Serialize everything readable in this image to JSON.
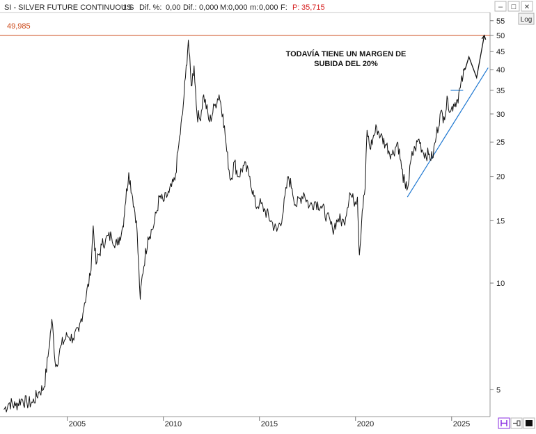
{
  "header": {
    "symbol": "SI - SILVER FUTURE CONTINUOUS",
    "period": "1 S",
    "dif_pct_label": "Dif. %:",
    "dif_pct_value": "0,00",
    "dif_label": "Dif.:",
    "dif_value": "0,000",
    "max_label": "M:",
    "max_value": "0,000",
    "min_label": "m:",
    "min_value": "0,000",
    "f_label": "F:",
    "price_label": "P:",
    "price_value": "35,715"
  },
  "controls": {
    "scale_button": "Log",
    "minimize": "–",
    "restore": "□",
    "close": "✕"
  },
  "colors": {
    "price_line": "#111111",
    "resistance_line": "#cc4a1a",
    "resistance_text": "#cc4a1a",
    "trend_line": "#1f78d1",
    "header_price": "#d62020",
    "gridline": "#e3e3e3"
  },
  "chart_data": {
    "type": "line",
    "scale": "log",
    "title": "SI - SILVER FUTURE CONTINUOUS",
    "xlabel": "",
    "ylabel": "",
    "xlim": [
      2001.5,
      2027.0
    ],
    "ylim": [
      4.2,
      58
    ],
    "x_ticks": [
      2005,
      2010,
      2015,
      2020,
      2025
    ],
    "x_tick_labels": [
      "2005",
      "2010",
      "2015",
      "2020",
      "2025"
    ],
    "y_ticks": [
      5,
      10,
      15,
      20,
      25,
      30,
      35,
      40,
      45,
      50,
      55
    ],
    "y_tick_labels": [
      "5",
      "10",
      "15",
      "20",
      "25",
      "30",
      "35",
      "40",
      "45",
      "50",
      "55"
    ],
    "grid": false,
    "series": [
      {
        "points": [
          [
            2001.7,
            4.4
          ],
          [
            2002.0,
            4.6
          ],
          [
            2002.3,
            4.5
          ],
          [
            2002.6,
            4.7
          ],
          [
            2002.9,
            4.6
          ],
          [
            2003.2,
            4.6
          ],
          [
            2003.5,
            4.9
          ],
          [
            2003.8,
            5.1
          ],
          [
            2004.0,
            6.2
          ],
          [
            2004.2,
            7.9
          ],
          [
            2004.4,
            5.8
          ],
          [
            2004.7,
            6.7
          ],
          [
            2005.0,
            7.1
          ],
          [
            2005.3,
            7.0
          ],
          [
            2005.6,
            7.3
          ],
          [
            2005.9,
            8.8
          ],
          [
            2006.2,
            10.5
          ],
          [
            2006.35,
            14.5
          ],
          [
            2006.5,
            11.3
          ],
          [
            2006.8,
            12.8
          ],
          [
            2007.0,
            13.3
          ],
          [
            2007.3,
            13.6
          ],
          [
            2007.6,
            12.8
          ],
          [
            2007.9,
            14.5
          ],
          [
            2008.0,
            16.5
          ],
          [
            2008.2,
            20.5
          ],
          [
            2008.4,
            17.5
          ],
          [
            2008.6,
            15.0
          ],
          [
            2008.8,
            9.0
          ],
          [
            2008.9,
            10.5
          ],
          [
            2009.2,
            13.5
          ],
          [
            2009.5,
            14.5
          ],
          [
            2009.8,
            17.5
          ],
          [
            2010.0,
            17.0
          ],
          [
            2010.3,
            18.0
          ],
          [
            2010.6,
            19.5
          ],
          [
            2010.8,
            24.5
          ],
          [
            2011.0,
            30.0
          ],
          [
            2011.15,
            38.0
          ],
          [
            2011.3,
            48.5
          ],
          [
            2011.45,
            36.0
          ],
          [
            2011.6,
            41.0
          ],
          [
            2011.75,
            30.0
          ],
          [
            2011.9,
            29.0
          ],
          [
            2012.1,
            34.0
          ],
          [
            2012.4,
            28.5
          ],
          [
            2012.7,
            32.0
          ],
          [
            2012.9,
            34.0
          ],
          [
            2013.1,
            30.0
          ],
          [
            2013.3,
            23.5
          ],
          [
            2013.5,
            19.5
          ],
          [
            2013.7,
            22.0
          ],
          [
            2013.9,
            20.0
          ],
          [
            2014.2,
            21.5
          ],
          [
            2014.5,
            20.0
          ],
          [
            2014.8,
            16.5
          ],
          [
            2015.0,
            16.8
          ],
          [
            2015.3,
            16.0
          ],
          [
            2015.6,
            15.0
          ],
          [
            2015.9,
            14.0
          ],
          [
            2016.2,
            15.5
          ],
          [
            2016.5,
            20.0
          ],
          [
            2016.7,
            18.5
          ],
          [
            2016.9,
            16.5
          ],
          [
            2017.3,
            18.0
          ],
          [
            2017.6,
            16.5
          ],
          [
            2017.9,
            17.0
          ],
          [
            2018.2,
            16.5
          ],
          [
            2018.5,
            15.5
          ],
          [
            2018.8,
            14.2
          ],
          [
            2019.1,
            15.2
          ],
          [
            2019.4,
            14.8
          ],
          [
            2019.7,
            18.0
          ],
          [
            2019.9,
            17.0
          ],
          [
            2020.1,
            17.5
          ],
          [
            2020.2,
            12.0
          ],
          [
            2020.35,
            16.0
          ],
          [
            2020.5,
            18.5
          ],
          [
            2020.6,
            27.0
          ],
          [
            2020.75,
            24.0
          ],
          [
            2020.9,
            25.5
          ],
          [
            2021.1,
            27.5
          ],
          [
            2021.3,
            26.0
          ],
          [
            2021.6,
            24.5
          ],
          [
            2021.9,
            23.0
          ],
          [
            2022.2,
            25.0
          ],
          [
            2022.4,
            21.0
          ],
          [
            2022.6,
            18.5
          ],
          [
            2022.75,
            19.0
          ],
          [
            2022.9,
            22.5
          ],
          [
            2023.1,
            24.0
          ],
          [
            2023.3,
            25.5
          ],
          [
            2023.5,
            23.5
          ],
          [
            2023.8,
            23.0
          ],
          [
            2024.0,
            22.5
          ],
          [
            2024.2,
            26.0
          ],
          [
            2024.4,
            30.0
          ],
          [
            2024.6,
            29.5
          ],
          [
            2024.8,
            33.0
          ],
          [
            2024.95,
            30.5
          ],
          [
            2025.1,
            32.0
          ],
          [
            2025.3,
            33.0
          ],
          [
            2025.45,
            35.5
          ],
          [
            2025.6,
            38.5
          ],
          [
            2025.7,
            40.0
          ]
        ]
      }
    ],
    "projection": [
      [
        2025.7,
        40.0
      ],
      [
        2025.9,
        43.5
      ],
      [
        2026.3,
        38.0
      ],
      [
        2026.7,
        49.985
      ]
    ],
    "resistance": {
      "value": 49.985,
      "label": "49,985"
    },
    "trendline": {
      "from": [
        2022.7,
        17.5
      ],
      "to": [
        2026.9,
        40.5
      ]
    },
    "consolidation_box": {
      "x": [
        2024.95,
        2025.6
      ],
      "y": 35.0
    },
    "annotation": {
      "line1": "TODAVÍA TIENE UN MARGEN DE",
      "line2": "SUBIDA DEL 20%"
    }
  }
}
